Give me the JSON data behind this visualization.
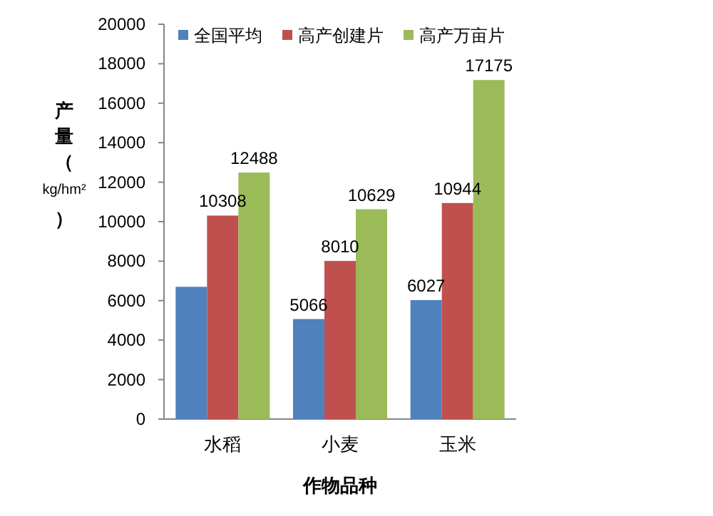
{
  "chart_data": {
    "type": "bar",
    "xlabel": "作物品种",
    "ylabel": "产量（kg/hm²）",
    "categories": [
      "水稻",
      "小麦",
      "玉米"
    ],
    "series": [
      {
        "name": "全国平均",
        "color": "#4f81bd",
        "values": [
          6700,
          5066,
          6027
        ],
        "value_labels": [
          null,
          "5066",
          "6027"
        ]
      },
      {
        "name": "高产创建片",
        "color": "#c0504d",
        "values": [
          10308,
          8010,
          10944
        ],
        "value_labels": [
          "10308",
          "8010",
          "10944"
        ]
      },
      {
        "name": "高产万亩片",
        "color": "#9bbb59",
        "values": [
          12488,
          10629,
          17175
        ],
        "value_labels": [
          "12488",
          "10629",
          "17175"
        ]
      }
    ],
    "ylim": [
      0,
      20000
    ],
    "yticks": [
      0,
      2000,
      4000,
      6000,
      8000,
      10000,
      12000,
      14000,
      16000,
      18000,
      20000
    ],
    "grid": false,
    "legend": "top"
  }
}
